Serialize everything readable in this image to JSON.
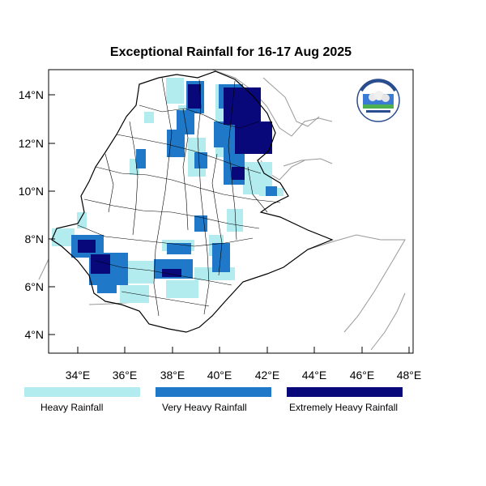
{
  "title": "Exceptional Rainfall for 16-17 Aug 2025",
  "axes": {
    "lon_ticks": [
      "34°E",
      "36°E",
      "38°E",
      "40°E",
      "42°E",
      "44°E",
      "46°E",
      "48°E"
    ],
    "lat_ticks": [
      "14°N",
      "12°N",
      "10°N",
      "8°N",
      "6°N",
      "4°N"
    ]
  },
  "legend": {
    "heavy": {
      "label": "Heavy Rainfall",
      "color": "#b3ecef"
    },
    "very_heavy": {
      "label": "Very Heavy Rainfall",
      "color": "#1f78c8"
    },
    "extreme": {
      "label": "Extremely Heavy Rainfall",
      "color": "#08087a"
    }
  },
  "logo": {
    "name": "ethiopian-meteorology-institute-logo"
  }
}
